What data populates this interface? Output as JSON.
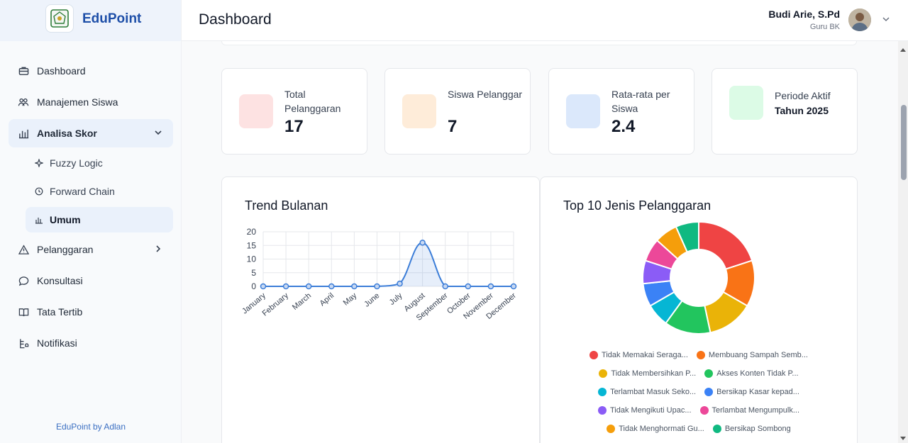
{
  "brand": {
    "name": "EduPoint"
  },
  "sidebar": {
    "items": [
      {
        "label": "Dashboard",
        "icon": "briefcase-icon"
      },
      {
        "label": "Manajemen Siswa",
        "icon": "users-icon"
      },
      {
        "label": "Analisa Skor",
        "icon": "bar-chart-icon",
        "expanded": true,
        "children": [
          {
            "label": "Fuzzy Logic",
            "icon": "sparkle-icon"
          },
          {
            "label": "Forward Chain",
            "icon": "clock-icon"
          },
          {
            "label": "Umum",
            "icon": "bar-chart-icon",
            "active": true
          }
        ]
      },
      {
        "label": "Pelanggaran",
        "icon": "warning-icon"
      },
      {
        "label": "Konsultasi",
        "icon": "chat-icon"
      },
      {
        "label": "Tata Tertib",
        "icon": "book-icon"
      },
      {
        "label": "Notifikasi",
        "icon": "bell-list-icon"
      }
    ],
    "footer": "EduPoint by Adlan"
  },
  "header": {
    "title": "Dashboard",
    "user_name": "Budi Arie, S.Pd",
    "user_role": "Guru BK"
  },
  "stats": [
    {
      "label": "Total Pelanggaran",
      "value": "17",
      "color": "#fde2e2"
    },
    {
      "label": "Siswa Pelanggar",
      "value": "7",
      "color": "#feecd9"
    },
    {
      "label": "Rata-rata per Siswa",
      "value": "2.4",
      "color": "#dbe8fb"
    },
    {
      "label": "Periode Aktif",
      "value": "Tahun 2025",
      "color": "#dcfbe6"
    }
  ],
  "trend": {
    "title": "Trend Bulanan",
    "chart_data": {
      "type": "line",
      "x": [
        "January",
        "February",
        "March",
        "April",
        "May",
        "June",
        "July",
        "August",
        "September",
        "October",
        "November",
        "December"
      ],
      "series": [
        {
          "values": [
            0,
            0,
            0,
            0,
            0,
            0,
            1,
            16,
            0,
            0,
            0,
            0
          ],
          "color": "#3b7dd8"
        }
      ],
      "ylim": [
        0,
        20
      ],
      "yticks": [
        0,
        5,
        10,
        15,
        20
      ],
      "grid": true,
      "fill": true
    }
  },
  "top10": {
    "title": "Top 10 Jenis Pelanggaran",
    "chart_data": {
      "type": "pie",
      "donut": true,
      "categories": [
        "Tidak Memakai Seraga...",
        "Membuang Sampah Semb...",
        "Tidak Membersihkan P...",
        "Akses Konten Tidak P...",
        "Terlambat Masuk Seko...",
        "Bersikap Kasar kepad...",
        "Tidak Mengikuti Upac...",
        "Terlambat Mengumpulk...",
        "Tidak Menghormati Gu...",
        "Bersikap Sombong"
      ],
      "values": [
        3,
        2,
        2,
        2,
        1,
        1,
        1,
        1,
        1,
        1
      ],
      "colors": [
        "#ef4444",
        "#f97316",
        "#eab308",
        "#22c55e",
        "#06b6d4",
        "#3b82f6",
        "#8b5cf6",
        "#ec4899",
        "#f59e0b",
        "#10b981"
      ]
    }
  }
}
